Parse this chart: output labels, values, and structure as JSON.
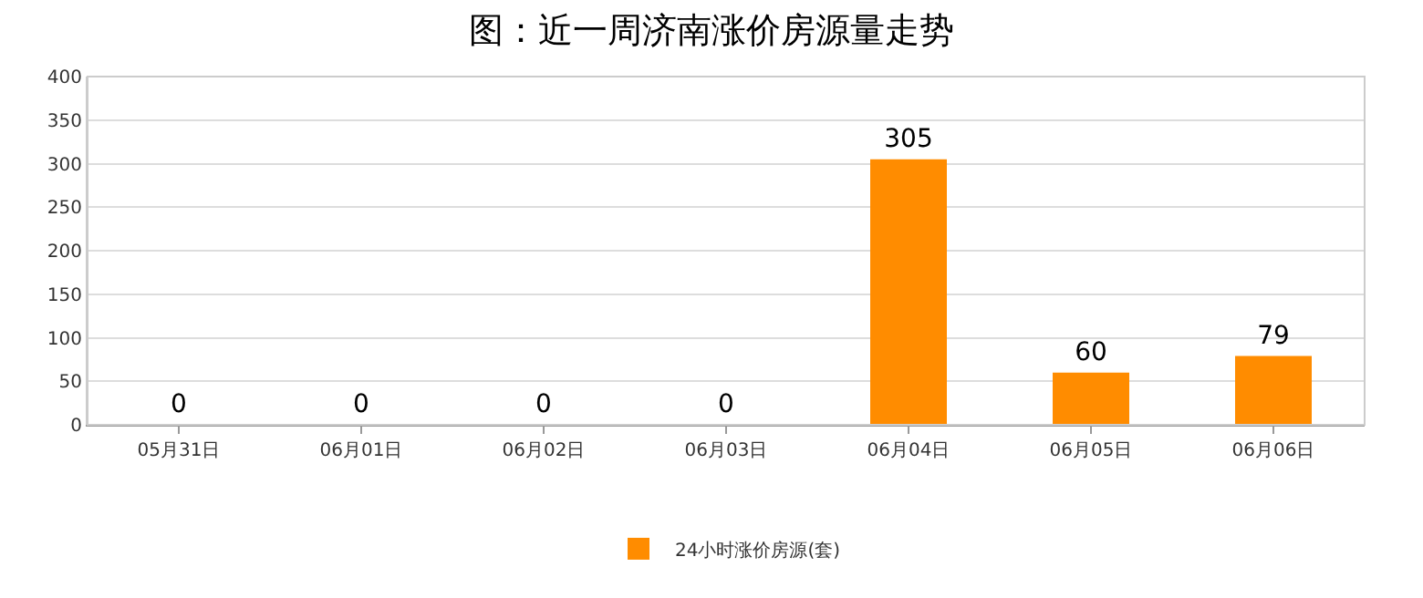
{
  "chart_data": {
    "type": "bar",
    "title": "图：近一周济南涨价房源量走势",
    "categories": [
      "05月31日",
      "06月01日",
      "06月02日",
      "06月03日",
      "06月04日",
      "06月05日",
      "06月06日"
    ],
    "series": [
      {
        "name": "24小时涨价房源(套)",
        "color": "#ff8c00",
        "values": [
          0,
          0,
          0,
          0,
          305,
          60,
          79
        ]
      }
    ],
    "ylim": [
      0,
      400
    ],
    "yticks": [
      0,
      50,
      100,
      150,
      200,
      250,
      300,
      350,
      400
    ],
    "grid": "y",
    "legend": "bottom",
    "data_labels": true
  }
}
